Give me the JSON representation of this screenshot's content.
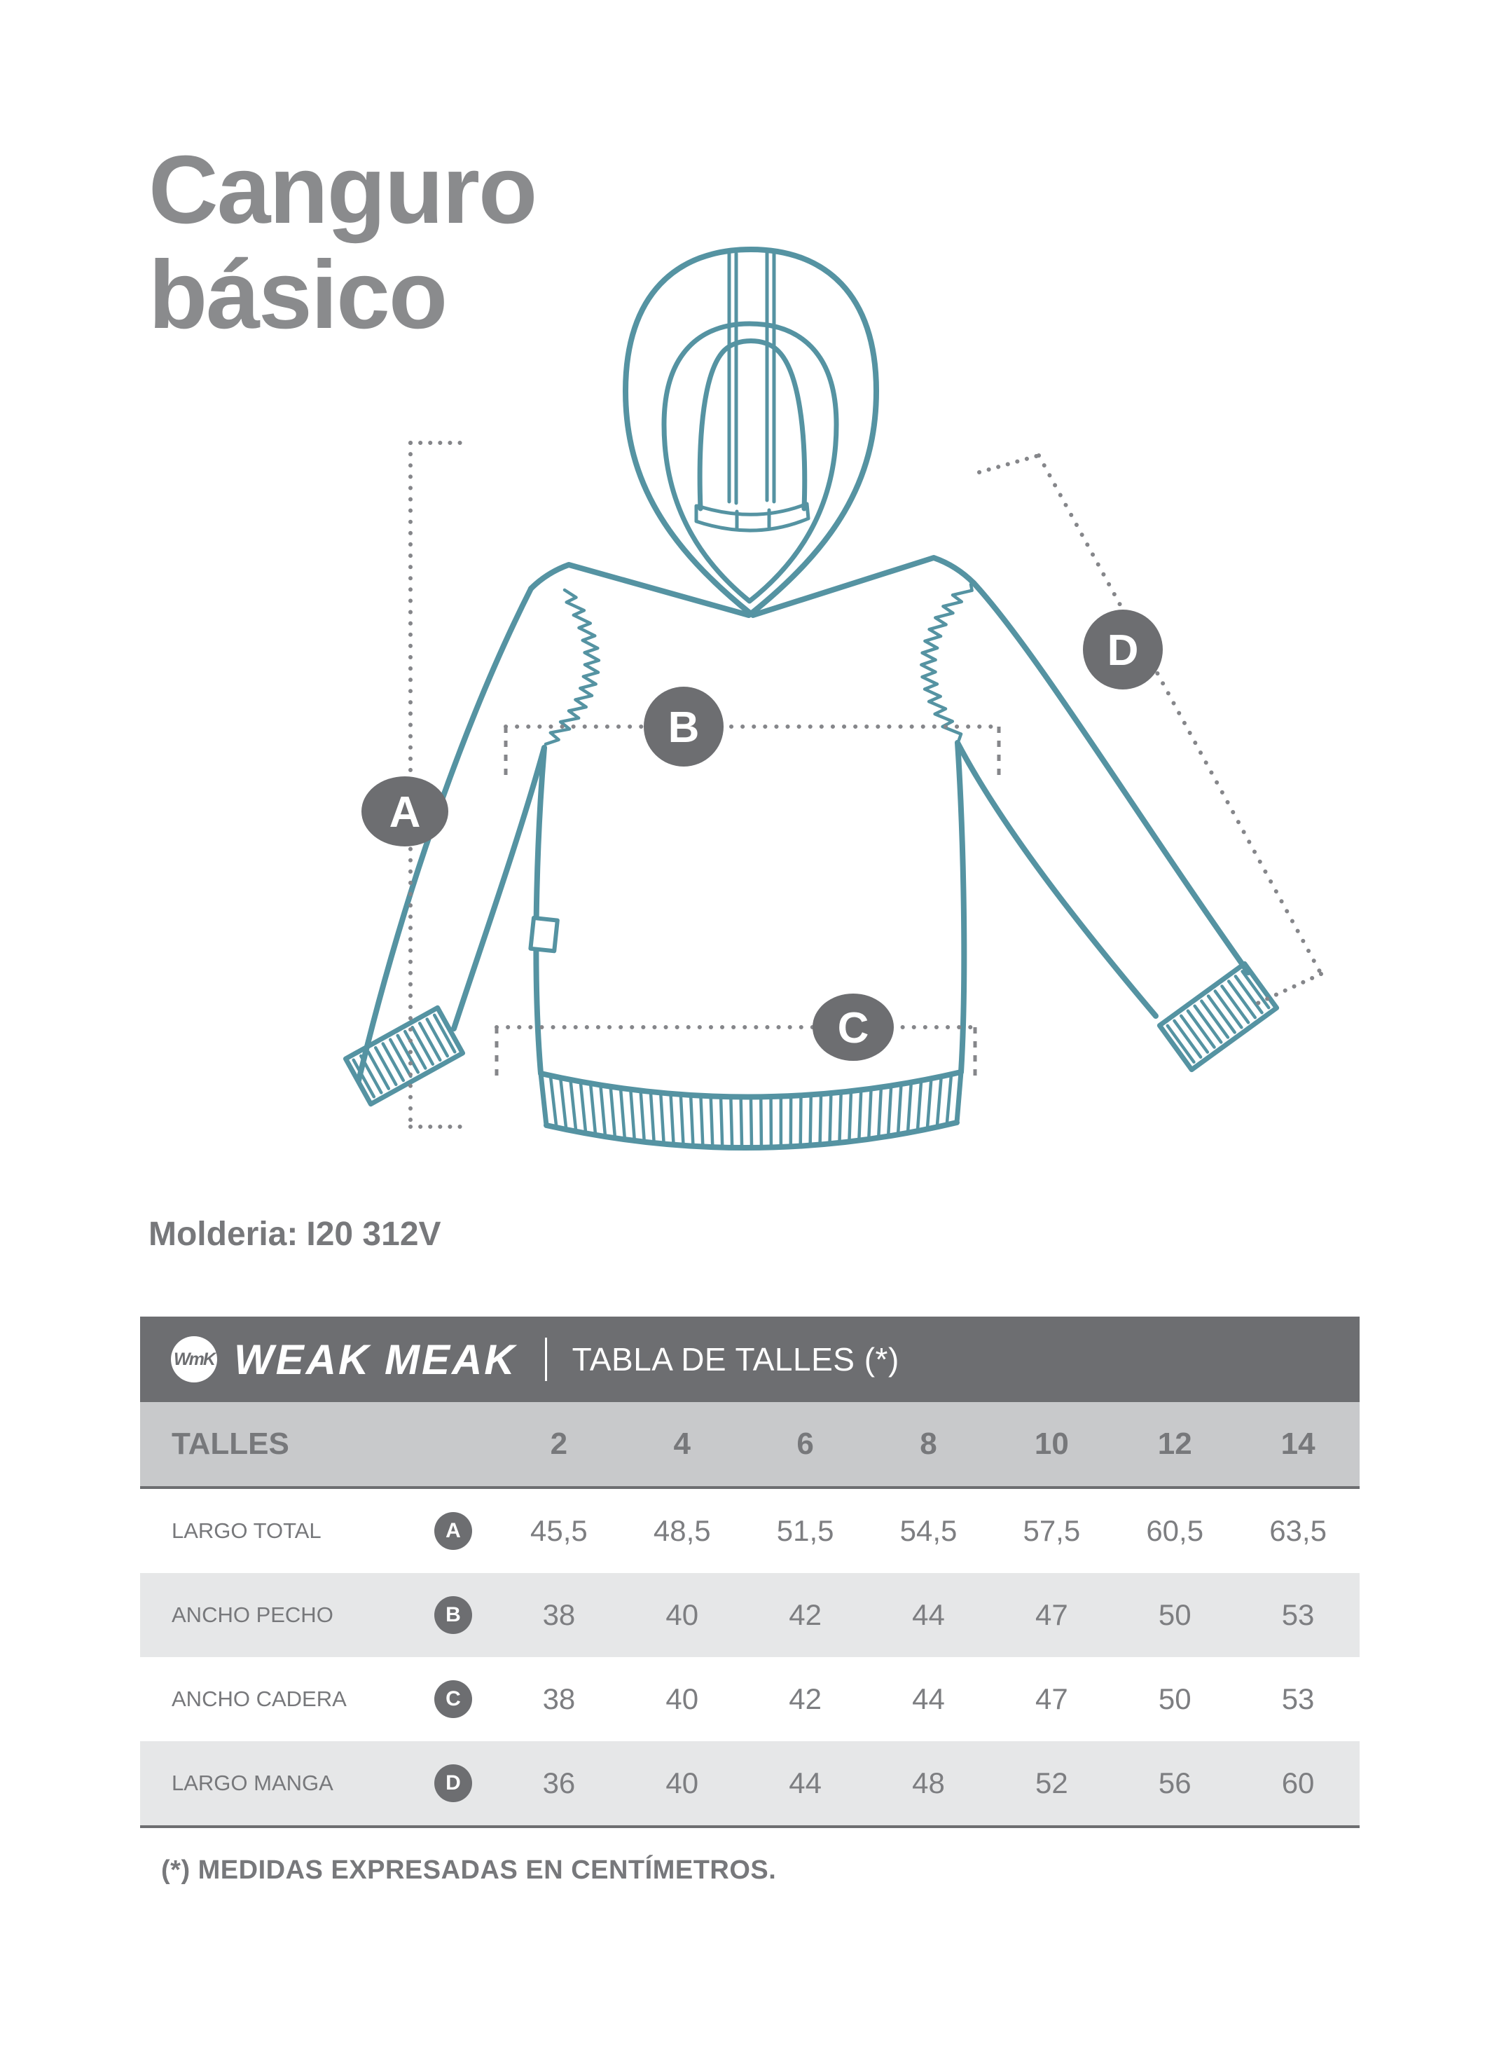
{
  "page": {
    "title_line1": "Canguro",
    "title_line2": "básico",
    "pattern_label": "Molderia:",
    "pattern_code": "I20 312V",
    "footnote": "(*) MEDIDAS EXPRESADAS EN CENTÍMETROS."
  },
  "diagram": {
    "garment_color": "#5593a2",
    "annotation_color": "#85868a",
    "badge_color": "#6d6e71",
    "labels": {
      "a": "A",
      "b": "B",
      "c": "C",
      "d": "D"
    }
  },
  "table": {
    "logo_monogram": "WmK",
    "brand": "WEAK MEAK",
    "title": "TABLA DE TALLES (*)",
    "sizes_label": "TALLES",
    "sizes": [
      "2",
      "4",
      "6",
      "8",
      "10",
      "12",
      "14"
    ],
    "rows": [
      {
        "label": "LARGO TOTAL",
        "badge": "A",
        "values": [
          "45,5",
          "48,5",
          "51,5",
          "54,5",
          "57,5",
          "60,5",
          "63,5"
        ]
      },
      {
        "label": "ANCHO PECHO",
        "badge": "B",
        "values": [
          "38",
          "40",
          "42",
          "44",
          "47",
          "50",
          "53"
        ]
      },
      {
        "label": "ANCHO CADERA",
        "badge": "C",
        "values": [
          "38",
          "40",
          "42",
          "44",
          "47",
          "50",
          "53"
        ]
      },
      {
        "label": "LARGO MANGA",
        "badge": "D",
        "values": [
          "36",
          "40",
          "44",
          "48",
          "52",
          "56",
          "60"
        ]
      }
    ]
  }
}
